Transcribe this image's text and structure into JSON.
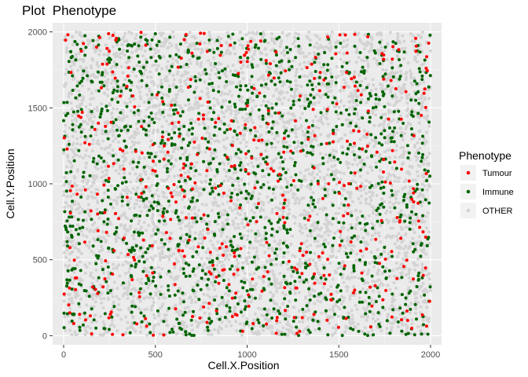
{
  "chart_data": {
    "type": "scatter",
    "title": "Plot  Phenotype",
    "xlabel": "Cell.X.Position",
    "ylabel": "Cell.Y.Position",
    "xlim": [
      -60,
      2060
    ],
    "ylim": [
      -60,
      2060
    ],
    "x_ticks": [
      0,
      500,
      1000,
      1500,
      2000
    ],
    "y_ticks": [
      0,
      500,
      1000,
      1500,
      2000
    ],
    "grid": true,
    "legend": {
      "title": "Phenotype",
      "placement": "right",
      "entries": [
        "Tumour",
        "Immune",
        "OTHER"
      ]
    },
    "series": [
      {
        "name": "OTHER",
        "color": "#d3d3d3",
        "count": 4500,
        "points": [
          [
            0,
            0
          ],
          [
            2000,
            2000
          ]
        ]
      },
      {
        "name": "Immune",
        "color": "#006400",
        "count": 1300,
        "points": [
          [
            0,
            0
          ],
          [
            2000,
            2000
          ]
        ]
      },
      {
        "name": "Tumour",
        "color": "#ff0000",
        "count": 460,
        "points": [
          [
            0,
            0
          ],
          [
            2000,
            2000
          ]
        ]
      }
    ]
  }
}
